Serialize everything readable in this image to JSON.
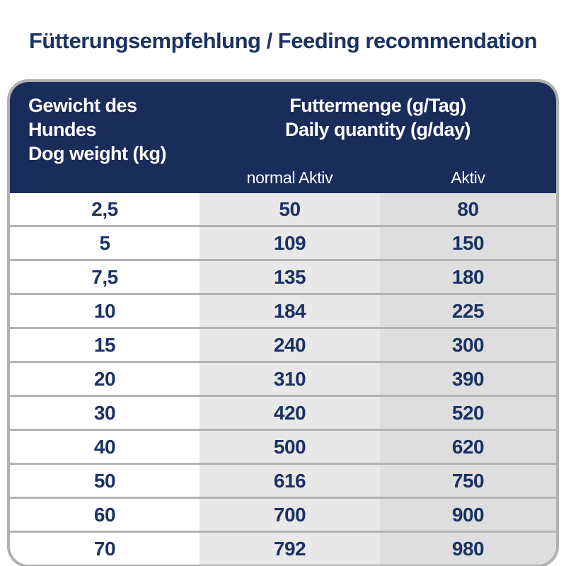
{
  "title": "Fütterungsempfehlung / Feeding recommendation",
  "table": {
    "header": {
      "left_line1": "Gewicht des Hundes",
      "left_line2": "Dog weight (kg)",
      "right_line1": "Futtermenge (g/Tag)",
      "right_line2": "Daily quantity (g/day)",
      "sub_normal": "normal Aktiv",
      "sub_aktiv": "Aktiv"
    },
    "rows": [
      {
        "weight": "2,5",
        "normal": "50",
        "aktiv": "80"
      },
      {
        "weight": "5",
        "normal": "109",
        "aktiv": "150"
      },
      {
        "weight": "7,5",
        "normal": "135",
        "aktiv": "180"
      },
      {
        "weight": "10",
        "normal": "184",
        "aktiv": "225"
      },
      {
        "weight": "15",
        "normal": "240",
        "aktiv": "300"
      },
      {
        "weight": "20",
        "normal": "310",
        "aktiv": "390"
      },
      {
        "weight": "30",
        "normal": "420",
        "aktiv": "520"
      },
      {
        "weight": "40",
        "normal": "500",
        "aktiv": "620"
      },
      {
        "weight": "50",
        "normal": "616",
        "aktiv": "750"
      },
      {
        "weight": "60",
        "normal": "700",
        "aktiv": "900"
      },
      {
        "weight": "70",
        "normal": "792",
        "aktiv": "980"
      }
    ]
  },
  "colors": {
    "header_bg": "#1a2c5a",
    "text_navy": "#1a3263",
    "header_text": "#ffffff",
    "col2_bg": "#e8e8e8",
    "col3_bg": "#dedede",
    "outer_border": "#b0b0b0",
    "row_separator": "#b3b3b3"
  },
  "chart_data": {
    "type": "table",
    "title": "Fütterungsempfehlung / Feeding recommendation",
    "columns": [
      "Gewicht des Hundes / Dog weight (kg)",
      "Futtermenge (g/Tag) / Daily quantity (g/day) — normal Aktiv",
      "Futtermenge (g/Tag) / Daily quantity (g/day) — Aktiv"
    ],
    "categories": [
      2.5,
      5,
      7.5,
      10,
      15,
      20,
      30,
      40,
      50,
      60,
      70
    ],
    "series": [
      {
        "name": "normal Aktiv",
        "values": [
          50,
          109,
          135,
          184,
          240,
          310,
          420,
          500,
          616,
          700,
          792
        ]
      },
      {
        "name": "Aktiv",
        "values": [
          80,
          150,
          180,
          225,
          300,
          390,
          520,
          620,
          750,
          900,
          980
        ]
      }
    ]
  }
}
